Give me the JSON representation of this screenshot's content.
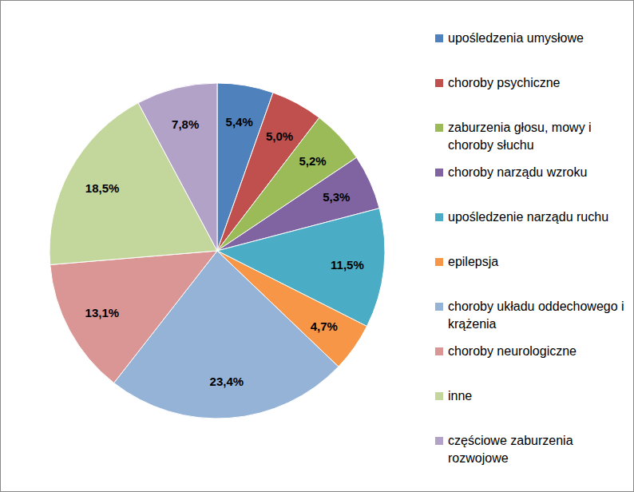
{
  "chart_data": {
    "type": "pie",
    "categories": [
      "upośledzenia umysłowe",
      "choroby psychiczne",
      "zaburzenia głosu, mowy i choroby słuchu",
      "choroby narządu wzroku",
      "upośledzenie narządu ruchu",
      "epilepsja",
      "choroby układu oddechowego i krążenia",
      "choroby neurologiczne",
      "inne",
      "częściowe zaburzenia rozwojowe"
    ],
    "values": [
      5.4,
      5.0,
      5.2,
      5.3,
      11.5,
      4.7,
      23.4,
      13.1,
      18.5,
      7.8
    ],
    "value_labels": [
      "5,4%",
      "5,0%",
      "5,2%",
      "5,3%",
      "11,5%",
      "4,7%",
      "23,4%",
      "13,1%",
      "18,5%",
      "7,8%"
    ],
    "colors": [
      "#4f81bd",
      "#c0504d",
      "#9bbb59",
      "#8064a2",
      "#4bacc6",
      "#f79646",
      "#95b3d7",
      "#d99694",
      "#c3d69b",
      "#b3a2c7"
    ],
    "data_labels": true,
    "legend": "right"
  }
}
